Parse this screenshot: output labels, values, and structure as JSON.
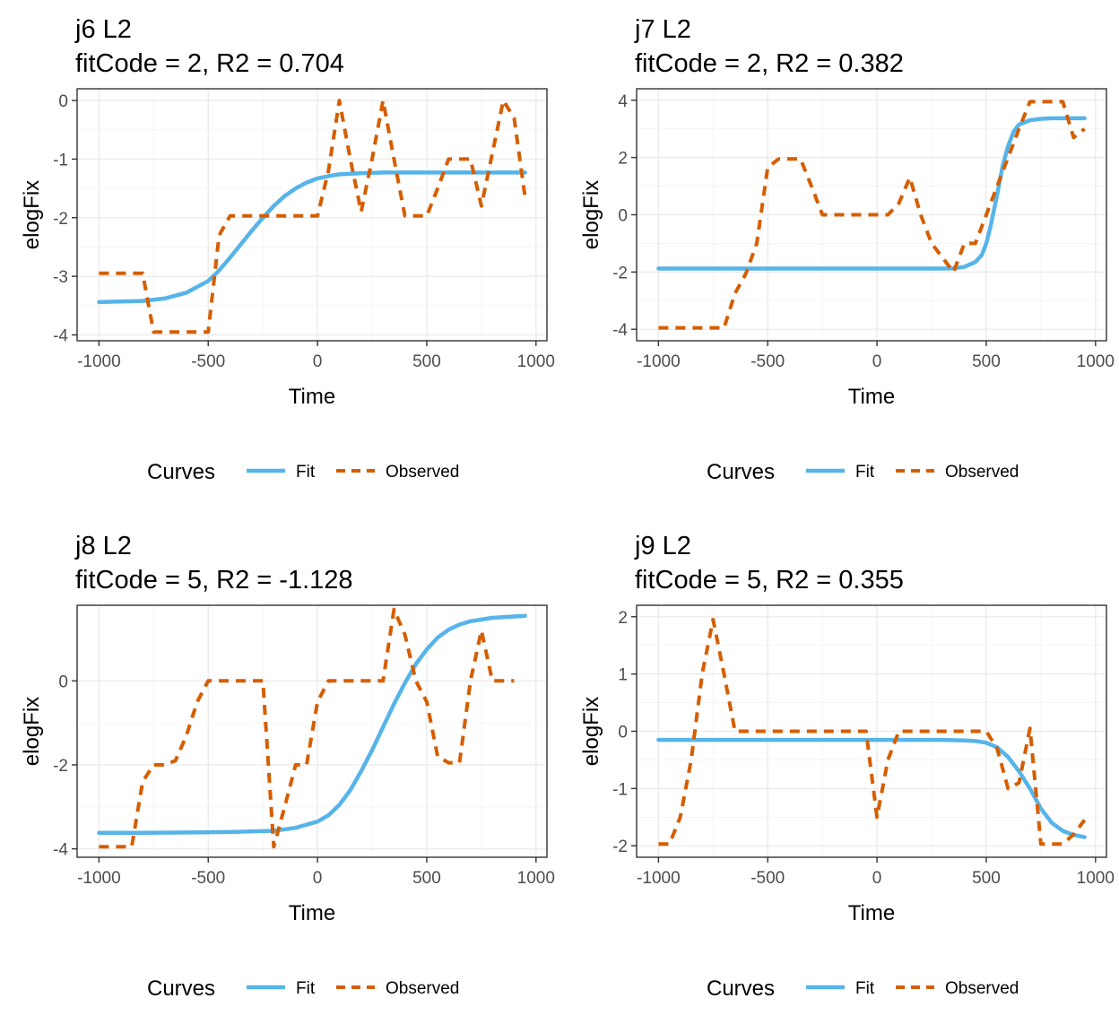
{
  "colors": {
    "fit": "#56B4E9",
    "observed": "#D55E00"
  },
  "legend": {
    "title": "Curves",
    "fit_label": "Fit",
    "observed_label": "Observed"
  },
  "chart_data": [
    {
      "type": "line",
      "title": "j6 L2",
      "subtitle": "fitCode = 2, R2 = 0.704",
      "xlabel": "Time",
      "ylabel": "elogFix",
      "xlim": [
        -1000,
        950
      ],
      "ylim": [
        -4,
        0
      ],
      "xticks": [
        -1000,
        -500,
        0,
        500,
        1000
      ],
      "yticks": [
        0,
        -1,
        -2,
        -3,
        -4
      ],
      "legend_position": "bottom",
      "series": [
        {
          "name": "Fit",
          "style": "solid",
          "x": [
            -1000,
            -900,
            -800,
            -700,
            -600,
            -500,
            -450,
            -400,
            -350,
            -300,
            -250,
            -200,
            -150,
            -100,
            -50,
            0,
            50,
            100,
            200,
            300,
            500,
            700,
            950
          ],
          "y": [
            -3.44,
            -3.43,
            -3.42,
            -3.38,
            -3.28,
            -3.08,
            -2.9,
            -2.68,
            -2.45,
            -2.22,
            -2.0,
            -1.8,
            -1.63,
            -1.5,
            -1.4,
            -1.33,
            -1.29,
            -1.26,
            -1.24,
            -1.23,
            -1.23,
            -1.23,
            -1.23
          ]
        },
        {
          "name": "Observed",
          "style": "dashed",
          "x": [
            -1000,
            -800,
            -750,
            -700,
            -650,
            -600,
            -550,
            -500,
            -450,
            -400,
            -350,
            -300,
            -250,
            -200,
            -150,
            -100,
            -50,
            0,
            50,
            100,
            150,
            200,
            250,
            300,
            350,
            400,
            450,
            500,
            550,
            600,
            650,
            700,
            750,
            800,
            850,
            900,
            950
          ],
          "y": [
            -2.95,
            -2.95,
            -3.95,
            -3.95,
            -3.95,
            -3.95,
            -3.95,
            -3.95,
            -2.3,
            -1.97,
            -1.97,
            -1.97,
            -1.97,
            -1.97,
            -1.97,
            -1.97,
            -1.97,
            -1.97,
            -1.2,
            0.0,
            -1.0,
            -1.9,
            -1.0,
            0.0,
            -1.0,
            -1.97,
            -1.97,
            -1.97,
            -1.5,
            -1.0,
            -1.0,
            -1.0,
            -1.8,
            -0.9,
            0.0,
            -0.3,
            -1.65
          ]
        }
      ]
    },
    {
      "type": "line",
      "title": "j7 L2",
      "subtitle": "fitCode = 2, R2 = 0.382",
      "xlabel": "Time",
      "ylabel": "elogFix",
      "xlim": [
        -1000,
        950
      ],
      "ylim": [
        -4,
        4
      ],
      "xticks": [
        -1000,
        -500,
        0,
        500,
        1000
      ],
      "yticks": [
        4,
        2,
        0,
        -2,
        -4
      ],
      "legend_position": "bottom",
      "series": [
        {
          "name": "Fit",
          "style": "solid",
          "x": [
            -1000,
            -500,
            0,
            300,
            350,
            400,
            450,
            480,
            500,
            520,
            550,
            575,
            600,
            625,
            650,
            700,
            750,
            800,
            950
          ],
          "y": [
            -1.88,
            -1.88,
            -1.88,
            -1.88,
            -1.87,
            -1.82,
            -1.65,
            -1.4,
            -1.0,
            -0.4,
            0.7,
            1.7,
            2.4,
            2.9,
            3.15,
            3.3,
            3.35,
            3.37,
            3.37
          ]
        },
        {
          "name": "Observed",
          "style": "dashed",
          "x": [
            -1000,
            -700,
            -650,
            -600,
            -550,
            -500,
            -450,
            -400,
            -350,
            -300,
            -250,
            -200,
            -150,
            -100,
            -50,
            0,
            50,
            100,
            150,
            200,
            250,
            300,
            350,
            400,
            450,
            500,
            550,
            600,
            650,
            700,
            750,
            800,
            850,
            900,
            950
          ],
          "y": [
            -3.95,
            -3.95,
            -2.75,
            -2.05,
            -1.0,
            1.65,
            1.95,
            1.95,
            1.95,
            1.0,
            0.0,
            0.0,
            0.0,
            0.0,
            0.0,
            0.0,
            0.0,
            0.4,
            1.3,
            0.0,
            -1.0,
            -1.5,
            -2.0,
            -1.0,
            -1.0,
            0.0,
            1.0,
            2.0,
            3.0,
            3.95,
            3.95,
            3.95,
            3.95,
            2.7,
            3.0
          ]
        }
      ]
    },
    {
      "type": "line",
      "title": "j8 L2",
      "subtitle": "fitCode = 5, R2 = -1.128",
      "xlabel": "Time",
      "ylabel": "elogFix",
      "xlim": [
        -1000,
        950
      ],
      "ylim": [
        -4,
        1.55
      ],
      "xticks": [
        -1000,
        -500,
        0,
        500,
        1000
      ],
      "yticks": [
        0,
        -2,
        -4
      ],
      "legend_position": "bottom",
      "series": [
        {
          "name": "Fit",
          "style": "solid",
          "x": [
            -1000,
            -800,
            -600,
            -400,
            -200,
            -100,
            0,
            50,
            100,
            150,
            200,
            250,
            300,
            350,
            400,
            450,
            500,
            550,
            600,
            650,
            700,
            800,
            950
          ],
          "y": [
            -3.62,
            -3.62,
            -3.61,
            -3.6,
            -3.57,
            -3.5,
            -3.35,
            -3.2,
            -2.95,
            -2.6,
            -2.15,
            -1.65,
            -1.1,
            -0.55,
            -0.05,
            0.4,
            0.75,
            1.03,
            1.22,
            1.34,
            1.42,
            1.5,
            1.55
          ]
        },
        {
          "name": "Observed",
          "style": "dashed",
          "x": [
            -1000,
            -850,
            -800,
            -750,
            -700,
            -650,
            -600,
            -550,
            -500,
            -450,
            -400,
            -350,
            -300,
            -250,
            -200,
            -150,
            -100,
            -50,
            0,
            50,
            100,
            150,
            200,
            250,
            300,
            350,
            400,
            450,
            500,
            550,
            600,
            650,
            700,
            750,
            800,
            850,
            900
          ],
          "y": [
            -3.95,
            -3.95,
            -2.4,
            -2.0,
            -2.0,
            -1.9,
            -1.3,
            -0.5,
            0.0,
            0.0,
            0.0,
            0.0,
            0.0,
            0.0,
            -3.95,
            -3.0,
            -2.0,
            -2.0,
            -0.5,
            0.0,
            0.0,
            0.0,
            0.0,
            0.0,
            0.0,
            1.7,
            1.1,
            0.0,
            -0.5,
            -1.8,
            -1.95,
            -1.95,
            0.0,
            1.2,
            0.0,
            0.0,
            0.0
          ]
        }
      ]
    },
    {
      "type": "line",
      "title": "j9 L2",
      "subtitle": "fitCode = 5, R2 = 0.355",
      "xlabel": "Time",
      "ylabel": "elogFix",
      "xlim": [
        -1000,
        950
      ],
      "ylim": [
        -2,
        2
      ],
      "xticks": [
        -1000,
        -500,
        0,
        500,
        1000
      ],
      "yticks": [
        2,
        1,
        0,
        -1,
        -2
      ],
      "legend_position": "bottom",
      "series": [
        {
          "name": "Fit",
          "style": "solid",
          "x": [
            -1000,
            -500,
            0,
            300,
            400,
            450,
            500,
            550,
            600,
            650,
            700,
            750,
            800,
            850,
            900,
            950
          ],
          "y": [
            -0.15,
            -0.15,
            -0.15,
            -0.15,
            -0.16,
            -0.17,
            -0.2,
            -0.28,
            -0.45,
            -0.7,
            -1.0,
            -1.35,
            -1.6,
            -1.74,
            -1.81,
            -1.85
          ]
        },
        {
          "name": "Observed",
          "style": "dashed",
          "x": [
            -1000,
            -950,
            -900,
            -850,
            -800,
            -750,
            -700,
            -650,
            -600,
            -550,
            -500,
            -450,
            -400,
            -350,
            -300,
            -250,
            -200,
            -150,
            -100,
            -50,
            0,
            50,
            100,
            150,
            200,
            250,
            300,
            350,
            400,
            450,
            500,
            550,
            600,
            650,
            700,
            750,
            800,
            850,
            900,
            950
          ],
          "y": [
            -1.97,
            -1.97,
            -1.5,
            -0.5,
            1.0,
            1.95,
            1.0,
            0.0,
            0.0,
            0.0,
            0.0,
            0.0,
            0.0,
            0.0,
            0.0,
            0.0,
            0.0,
            0.0,
            0.0,
            0.0,
            -1.5,
            -0.5,
            0.0,
            0.0,
            0.0,
            0.0,
            0.0,
            0.0,
            0.0,
            0.0,
            0.0,
            -0.3,
            -1.0,
            -0.9,
            0.05,
            -1.97,
            -1.97,
            -1.97,
            -1.8,
            -1.55
          ]
        }
      ]
    }
  ]
}
